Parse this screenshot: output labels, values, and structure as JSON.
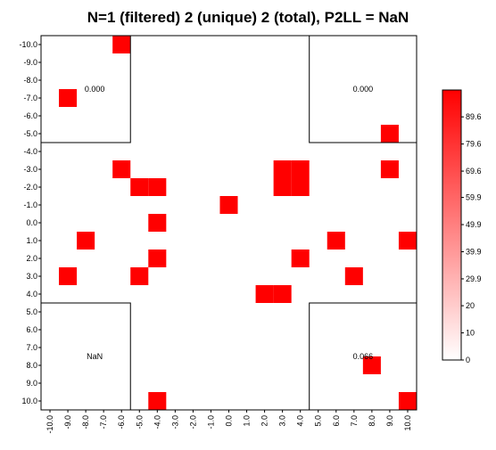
{
  "chart_data": {
    "type": "heatmap",
    "title": "N=1 (filtered) 2 (unique) 2 (total), P2LL = NaN",
    "x_ticks": [
      "-10.0",
      "-9.0",
      "-8.0",
      "-7.0",
      "-6.0",
      "-5.0",
      "-4.0",
      "-3.0",
      "-2.0",
      "-1.0",
      "0.0",
      "1.0",
      "2.0",
      "3.0",
      "4.0",
      "5.0",
      "6.0",
      "7.0",
      "8.0",
      "9.0",
      "10.0"
    ],
    "y_ticks": [
      "-10.0",
      "-9.0",
      "-8.0",
      "-7.0",
      "-6.0",
      "-5.0",
      "-4.0",
      "-3.0",
      "-2.0",
      "-1.0",
      "0.0",
      "1.0",
      "2.0",
      "3.0",
      "4.0",
      "5.0",
      "6.0",
      "7.0",
      "8.0",
      "9.0",
      "10.0"
    ],
    "xlim": [
      -10,
      10
    ],
    "ylim": [
      -10,
      10
    ],
    "y_inverted": true,
    "grid": false,
    "cells": [
      {
        "x": -6,
        "y": -10,
        "value": 69.6
      },
      {
        "x": -9,
        "y": -7,
        "value": 69.6
      },
      {
        "x": 9,
        "y": -5,
        "value": 69.6
      },
      {
        "x": -6,
        "y": -3,
        "value": 69.6
      },
      {
        "x": 9,
        "y": -3,
        "value": 69.6
      },
      {
        "x": 3,
        "y": -3,
        "value": 69.6
      },
      {
        "x": 4,
        "y": -3,
        "value": 69.6
      },
      {
        "x": -5,
        "y": -2,
        "value": 69.6
      },
      {
        "x": -4,
        "y": -2,
        "value": 69.6
      },
      {
        "x": 3,
        "y": -2,
        "value": 69.6
      },
      {
        "x": 4,
        "y": -2,
        "value": 69.6
      },
      {
        "x": 0,
        "y": -1,
        "value": 69.6
      },
      {
        "x": -4,
        "y": 0,
        "value": 69.6
      },
      {
        "x": -8,
        "y": 1,
        "value": 69.6
      },
      {
        "x": 6,
        "y": 1,
        "value": 69.6
      },
      {
        "x": 10,
        "y": 1,
        "value": 69.6
      },
      {
        "x": -4,
        "y": 2,
        "value": 69.6
      },
      {
        "x": 4,
        "y": 2,
        "value": 69.6
      },
      {
        "x": -9,
        "y": 3,
        "value": 69.6
      },
      {
        "x": -5,
        "y": 3,
        "value": 69.6
      },
      {
        "x": 7,
        "y": 3,
        "value": 69.6
      },
      {
        "x": 2,
        "y": 4,
        "value": 69.6
      },
      {
        "x": 3,
        "y": 4,
        "value": 69.6
      },
      {
        "x": 8,
        "y": 8,
        "value": 69.6
      },
      {
        "x": -4,
        "y": 10,
        "value": 69.6
      },
      {
        "x": 10,
        "y": 10,
        "value": 69.6
      }
    ],
    "quadrant_boxes": [
      {
        "x0": -10.5,
        "x1": -5.5,
        "y0": -10.5,
        "y1": -4.5,
        "label": "0.000",
        "label_x": -7.5,
        "label_y": -7.5
      },
      {
        "x0": 4.5,
        "x1": 10.5,
        "y0": -10.5,
        "y1": -4.5,
        "label": "0.000",
        "label_x": 7.5,
        "label_y": -7.5
      },
      {
        "x0": -10.5,
        "x1": -5.5,
        "y0": 4.5,
        "y1": 10.5,
        "label": "NaN",
        "label_x": -7.5,
        "label_y": 7.5
      },
      {
        "x0": 4.5,
        "x1": 10.5,
        "y0": 4.5,
        "y1": 10.5,
        "label": "0.066",
        "label_x": 7.5,
        "label_y": 7.5
      }
    ],
    "colorbar": {
      "ticks": [
        "0",
        "10",
        "20",
        "29.9",
        "39.9",
        "49.9",
        "59.9",
        "69.6",
        "79.6",
        "89.6"
      ],
      "tick_values": [
        0,
        10,
        20,
        29.9,
        39.9,
        49.9,
        59.9,
        69.6,
        79.6,
        89.6
      ],
      "min": 0,
      "max": 99.5,
      "color_low": "#ffffff",
      "color_high": "#ff0000"
    },
    "cell_color": "#ff0000"
  }
}
